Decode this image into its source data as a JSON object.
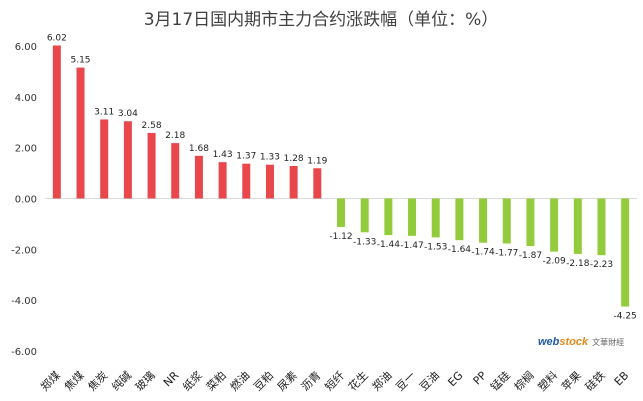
{
  "chart_data": {
    "type": "bar",
    "title": "3月17日国内期市主力合约涨跌幅（单位：%）",
    "categories": [
      "郑煤",
      "焦煤",
      "焦炭",
      "纯碱",
      "玻璃",
      "NR",
      "纸浆",
      "菜粕",
      "燃油",
      "豆粕",
      "尿素",
      "沥青",
      "短纤",
      "花生",
      "郑油",
      "豆一",
      "豆油",
      "EG",
      "PP",
      "锰硅",
      "棕榈",
      "塑料",
      "苹果",
      "硅铁",
      "EB"
    ],
    "values": [
      6.02,
      5.15,
      3.11,
      3.04,
      2.58,
      2.18,
      1.68,
      1.43,
      1.37,
      1.33,
      1.28,
      1.19,
      -1.12,
      -1.33,
      -1.44,
      -1.47,
      -1.53,
      -1.64,
      -1.74,
      -1.77,
      -1.87,
      -2.09,
      -2.18,
      -2.23,
      -4.25
    ],
    "value_labels": [
      "6.02",
      "5.15",
      "3.11",
      "3.04",
      "2.58",
      "2.18",
      "1.68",
      "1.43",
      "1.37",
      "1.33",
      "1.28",
      "1.19",
      "-1.12",
      "-1.33",
      "-1.44",
      "-1.47",
      "-1.53",
      "-1.64",
      "-1.74",
      "-1.77",
      "-1.87",
      "-2.09",
      "-2.18",
      "-2.23",
      "-4.25"
    ],
    "yticks": [
      "6.00",
      "4.00",
      "2.00",
      "0.00",
      "-2.00",
      "-4.00",
      "-6.00"
    ],
    "ylim": [
      -6,
      6
    ],
    "grid": false,
    "legend": "none",
    "colors": {
      "positive": "#e8484c",
      "negative": "#92cc3c"
    }
  },
  "watermark": {
    "brand_web": "web",
    "brand_stock": "stock",
    "brand_cn": "文華財經"
  }
}
